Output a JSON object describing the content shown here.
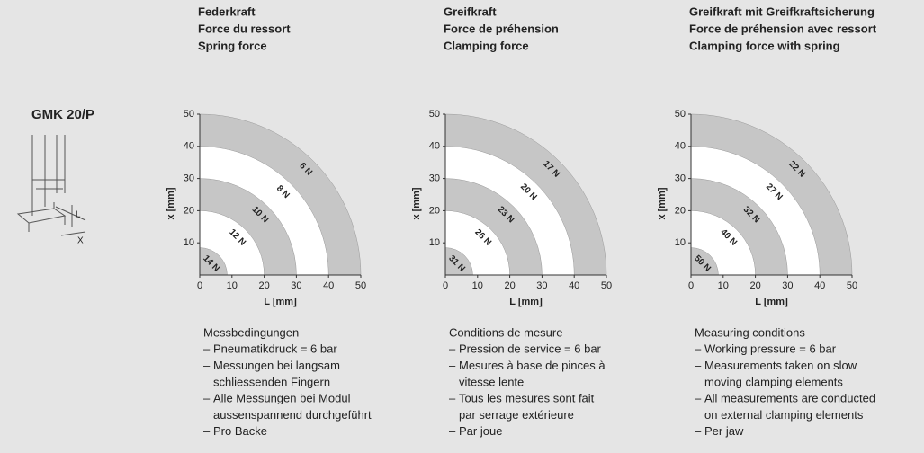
{
  "product": "GMK 20/P",
  "chart_data": [
    {
      "type": "quarter-rings",
      "title": [
        "Federkraft",
        "Force du ressort",
        "Spring force"
      ],
      "xlabel": "L [mm]",
      "ylabel": "x [mm]",
      "xlim": [
        0,
        50
      ],
      "ylim": [
        0,
        50
      ],
      "xticks": [
        0,
        10,
        20,
        30,
        40,
        50
      ],
      "yticks": [
        10,
        20,
        30,
        40,
        50
      ],
      "radii": [
        8.5,
        20,
        30,
        40,
        50
      ],
      "labels": [
        "14 N",
        "12 N",
        "10 N",
        "8 N",
        "6 N"
      ],
      "colors": [
        "#c6c6c6",
        "#ffffff",
        "#c6c6c6",
        "#ffffff",
        "#c6c6c6"
      ],
      "notes": {
        "heading": "Messbedingungen",
        "items": [
          [
            "Pneumatikdruck = 6 bar"
          ],
          [
            "Messungen bei langsam",
            "schliessenden Fingern"
          ],
          [
            "Alle Messungen bei Modul",
            "aussenspannend durchgeführt"
          ],
          [
            "Pro Backe"
          ]
        ]
      }
    },
    {
      "type": "quarter-rings",
      "title": [
        "Greifkraft",
        "Force de préhension",
        "Clamping force"
      ],
      "xlabel": "L [mm]",
      "ylabel": "x [mm]",
      "xlim": [
        0,
        50
      ],
      "ylim": [
        0,
        50
      ],
      "xticks": [
        0,
        10,
        20,
        30,
        40,
        50
      ],
      "yticks": [
        10,
        20,
        30,
        40,
        50
      ],
      "radii": [
        8.5,
        20,
        30,
        40,
        50
      ],
      "labels": [
        "31 N",
        "26 N",
        "23 N",
        "20 N",
        "17 N"
      ],
      "colors": [
        "#c6c6c6",
        "#ffffff",
        "#c6c6c6",
        "#ffffff",
        "#c6c6c6"
      ],
      "notes": {
        "heading": "Conditions de mesure",
        "items": [
          [
            "Pression de service = 6 bar"
          ],
          [
            "Mesures à base de pinces à",
            "vitesse lente"
          ],
          [
            "Tous les mesures sont fait",
            "par serrage extérieure"
          ],
          [
            "Par joue"
          ]
        ]
      }
    },
    {
      "type": "quarter-rings",
      "title": [
        "Greifkraft mit Greifkraftsicherung",
        "Force de préhension avec ressort",
        "Clamping force with spring"
      ],
      "xlabel": "L [mm]",
      "ylabel": "x [mm]",
      "xlim": [
        0,
        50
      ],
      "ylim": [
        0,
        50
      ],
      "xticks": [
        0,
        10,
        20,
        30,
        40,
        50
      ],
      "yticks": [
        10,
        20,
        30,
        40,
        50
      ],
      "radii": [
        8.5,
        20,
        30,
        40,
        50
      ],
      "labels": [
        "50 N",
        "40 N",
        "32 N",
        "27 N",
        "22 N"
      ],
      "colors": [
        "#c6c6c6",
        "#ffffff",
        "#c6c6c6",
        "#ffffff",
        "#c6c6c6"
      ],
      "notes": {
        "heading": "Measuring conditions",
        "items": [
          [
            "Working pressure = 6 bar"
          ],
          [
            "Measurements taken on slow",
            "moving clamping elements"
          ],
          [
            "All measurements are conducted",
            "on external clamping elements"
          ],
          [
            "Per jaw"
          ]
        ]
      }
    }
  ]
}
